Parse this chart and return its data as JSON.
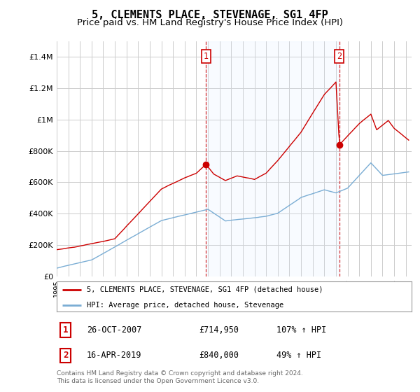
{
  "title": "5, CLEMENTS PLACE, STEVENAGE, SG1 4FP",
  "subtitle": "Price paid vs. HM Land Registry's House Price Index (HPI)",
  "ylabel_ticks": [
    "£0",
    "£200K",
    "£400K",
    "£600K",
    "£800K",
    "£1M",
    "£1.2M",
    "£1.4M"
  ],
  "ylim": [
    0,
    1500000
  ],
  "yticks": [
    0,
    200000,
    400000,
    600000,
    800000,
    1000000,
    1200000,
    1400000
  ],
  "xlim_start": 1995.0,
  "xlim_end": 2025.5,
  "transaction1": {
    "label": "1",
    "date": "26-OCT-2007",
    "price": 714950,
    "pct": "107%",
    "dir": "↑",
    "x": 2007.82
  },
  "transaction2": {
    "label": "2",
    "date": "16-APR-2019",
    "price": 840000,
    "pct": "49%",
    "dir": "↑",
    "x": 2019.29
  },
  "legend_line1": "5, CLEMENTS PLACE, STEVENAGE, SG1 4FP (detached house)",
  "legend_line2": "HPI: Average price, detached house, Stevenage",
  "footer": "Contains HM Land Registry data © Crown copyright and database right 2024.\nThis data is licensed under the Open Government Licence v3.0.",
  "line_color_red": "#cc0000",
  "line_color_blue": "#7aadd4",
  "shade_color": "#ddeeff",
  "background_color": "#ffffff",
  "grid_color": "#cccccc",
  "title_fontsize": 11,
  "subtitle_fontsize": 9.5
}
